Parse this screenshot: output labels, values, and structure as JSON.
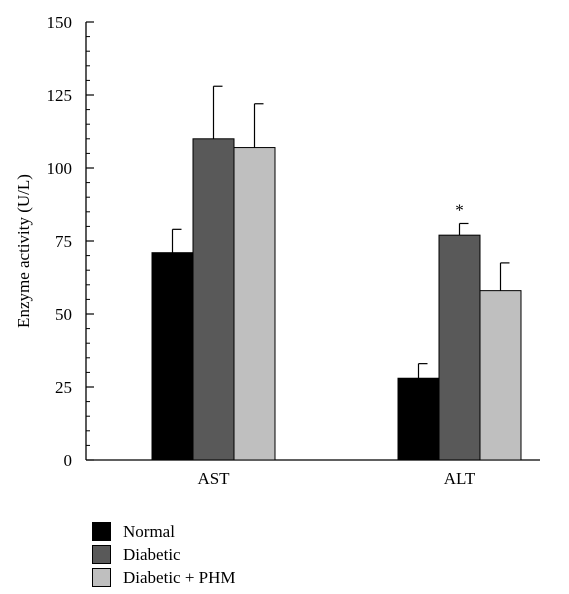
{
  "chart_data": {
    "type": "bar",
    "title": "",
    "xlabel": "",
    "ylabel": "Enzyme activity (U/L)",
    "ylim": [
      0,
      150
    ],
    "yticks": [
      0,
      25,
      50,
      75,
      100,
      125,
      150
    ],
    "yticks_minor_step": 5,
    "grid": false,
    "categories": [
      "AST",
      "ALT"
    ],
    "series": [
      {
        "name": "Normal",
        "color": "#000000",
        "values": [
          71,
          28
        ],
        "errors": [
          8,
          5
        ]
      },
      {
        "name": "Diabetic",
        "color": "#595959",
        "values": [
          110,
          77
        ],
        "errors": [
          18,
          4
        ]
      },
      {
        "name": "Diabetic + PHM",
        "color": "#bfbfbf",
        "values": [
          107,
          58
        ],
        "errors": [
          15,
          9.5
        ]
      }
    ],
    "annotations": [
      {
        "text": "*",
        "category": "ALT",
        "series": "Diabetic"
      }
    ],
    "legend": {
      "position": "bottom-left",
      "items": [
        {
          "label": "Normal",
          "color": "#000000"
        },
        {
          "label": "Diabetic",
          "color": "#595959"
        },
        {
          "label": "Diabetic + PHM",
          "color": "#bfbfbf"
        }
      ]
    }
  }
}
